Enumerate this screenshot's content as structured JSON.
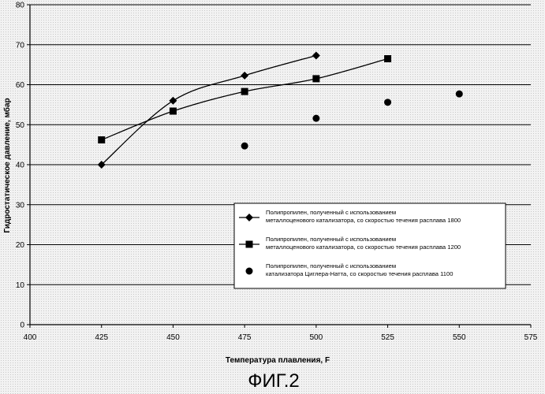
{
  "figure_label": "ФИГ.2",
  "chart_data": {
    "type": "scatter",
    "xlabel": "Температура плавления, F",
    "ylabel": "Гидростатическое давление, мбар",
    "xlim": [
      400,
      575
    ],
    "ylim": [
      0,
      80
    ],
    "x_ticks": [
      400,
      425,
      450,
      475,
      500,
      525,
      550,
      575
    ],
    "y_ticks": [
      0,
      10,
      20,
      30,
      40,
      50,
      60,
      70,
      80
    ],
    "grid": "horizontal",
    "legend_position": "right",
    "series": [
      {
        "name": "Полипропилен, полученный с использованием металлоценового катализатора, со скоростью течения расплава 1800",
        "legend_lines": [
          "Полипропилен, полученный с использованием",
          "металлоценового катализатора, со скоростью течения расплава 1800"
        ],
        "marker": "diamond",
        "line": true,
        "x": [
          425,
          450,
          475,
          500
        ],
        "y": [
          40,
          56,
          62.3,
          67.3
        ]
      },
      {
        "name": "Полипропилен, полученный с использованием металлоценового катализатора, со скоростью течения расплава 1200",
        "legend_lines": [
          "Полипропилен, полученный с использованием",
          "металлоценового катализатора, со скоростью течения расплава 1200"
        ],
        "marker": "square",
        "line": true,
        "x": [
          425,
          450,
          475,
          500,
          525
        ],
        "y": [
          46.2,
          53.4,
          58.3,
          61.5,
          66.5
        ]
      },
      {
        "name": "Полипропилен, полученный с использованием катализатора Циглера-Натта, со скоростью течения расплава 1100",
        "legend_lines": [
          "Полипропилен, полученный с использованием",
          "катализатора Циглера-Натта, со скоростью течения расплава 1100"
        ],
        "marker": "circle",
        "line": false,
        "x": [
          475,
          500,
          525,
          550
        ],
        "y": [
          44.7,
          51.6,
          55.6,
          57.7
        ]
      }
    ]
  }
}
